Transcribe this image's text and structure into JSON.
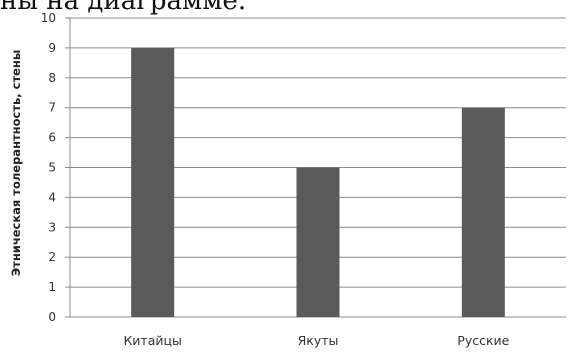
{
  "header_fragment": "ны на диаграмме.",
  "chart_data": {
    "type": "bar",
    "categories": [
      "Китайцы",
      "Якуты",
      "Русские"
    ],
    "values": [
      9,
      5,
      7
    ],
    "title": "",
    "xlabel": "",
    "ylabel": "Этническая толерантность, стены",
    "ylim": [
      0,
      10
    ],
    "yticks": [
      "0",
      "1",
      "2",
      "3",
      "4",
      "5",
      "6",
      "7",
      "8",
      "9",
      "10"
    ],
    "grid": true,
    "legend": "none",
    "bar_color": "#5a5a5a",
    "grid_color": "#8c8c8c"
  }
}
